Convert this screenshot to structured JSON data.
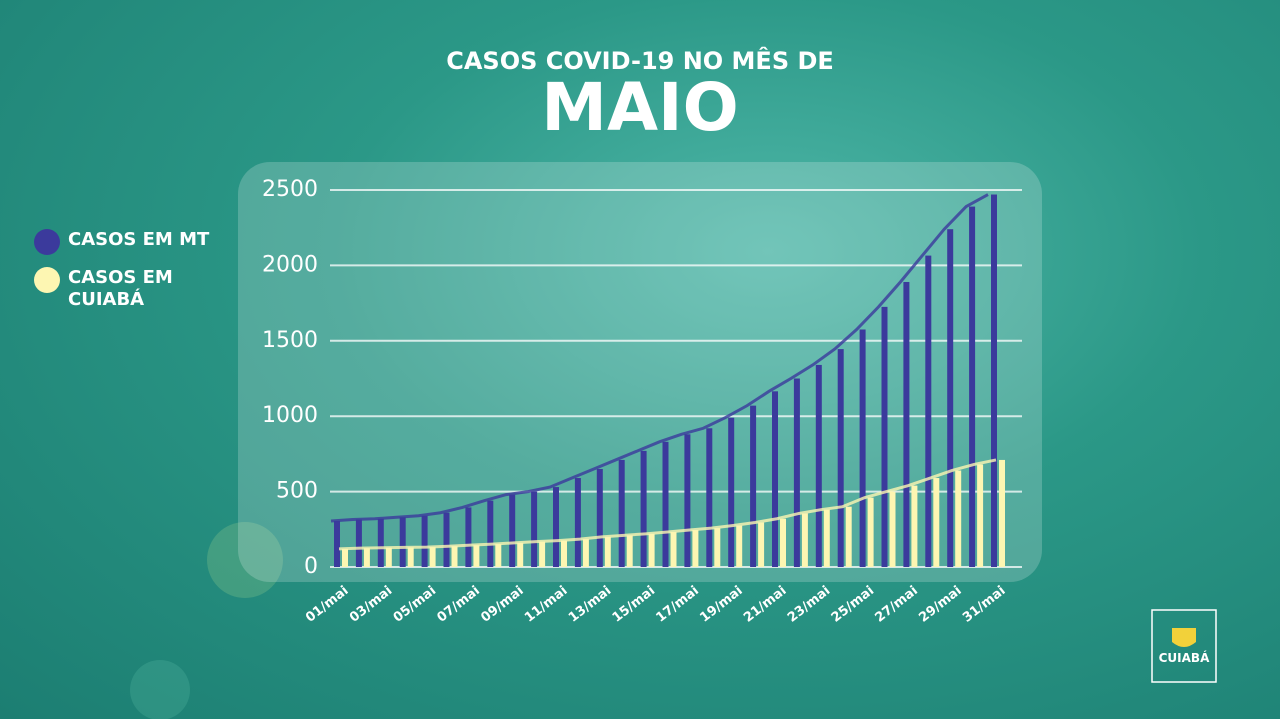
{
  "chart_data": {
    "type": "bar",
    "title": "CASOS COVID-19 NO MÊS DE",
    "subtitle": "MAIO",
    "categories": [
      "01/mai",
      null,
      "03/mai",
      null,
      "05/mai",
      null,
      "07/mai",
      null,
      "09/mai",
      null,
      "11/mai",
      null,
      "13/mai",
      null,
      "15/mai",
      null,
      "17/mai",
      null,
      "19/mai",
      null,
      "21/mai",
      null,
      "23/mai",
      null,
      "25/mai",
      null,
      "27/mai",
      null,
      "29/mai",
      null,
      "31/mai"
    ],
    "series": [
      {
        "name": "CASOS EM MT",
        "color": "#3b3a9c",
        "values": [
          305,
          315,
          320,
          330,
          340,
          360,
          395,
          440,
          480,
          500,
          530,
          590,
          650,
          710,
          770,
          830,
          880,
          920,
          990,
          1070,
          1165,
          1250,
          1340,
          1445,
          1575,
          1725,
          1890,
          2065,
          2240,
          2390,
          2470
        ]
      },
      {
        "name": "CASOS EM CUIABÁ",
        "color": "#fdf6b2",
        "values": [
          120,
          125,
          128,
          130,
          132,
          138,
          145,
          152,
          160,
          168,
          175,
          185,
          200,
          210,
          220,
          232,
          245,
          258,
          275,
          295,
          320,
          355,
          380,
          400,
          460,
          500,
          540,
          590,
          640,
          680,
          710
        ]
      }
    ],
    "ylim": [
      0,
      2500
    ],
    "yticks": [
      0,
      500,
      1000,
      1500,
      2000,
      2500
    ],
    "grid": true,
    "legend": "left"
  },
  "brand": "CUIABÁ"
}
